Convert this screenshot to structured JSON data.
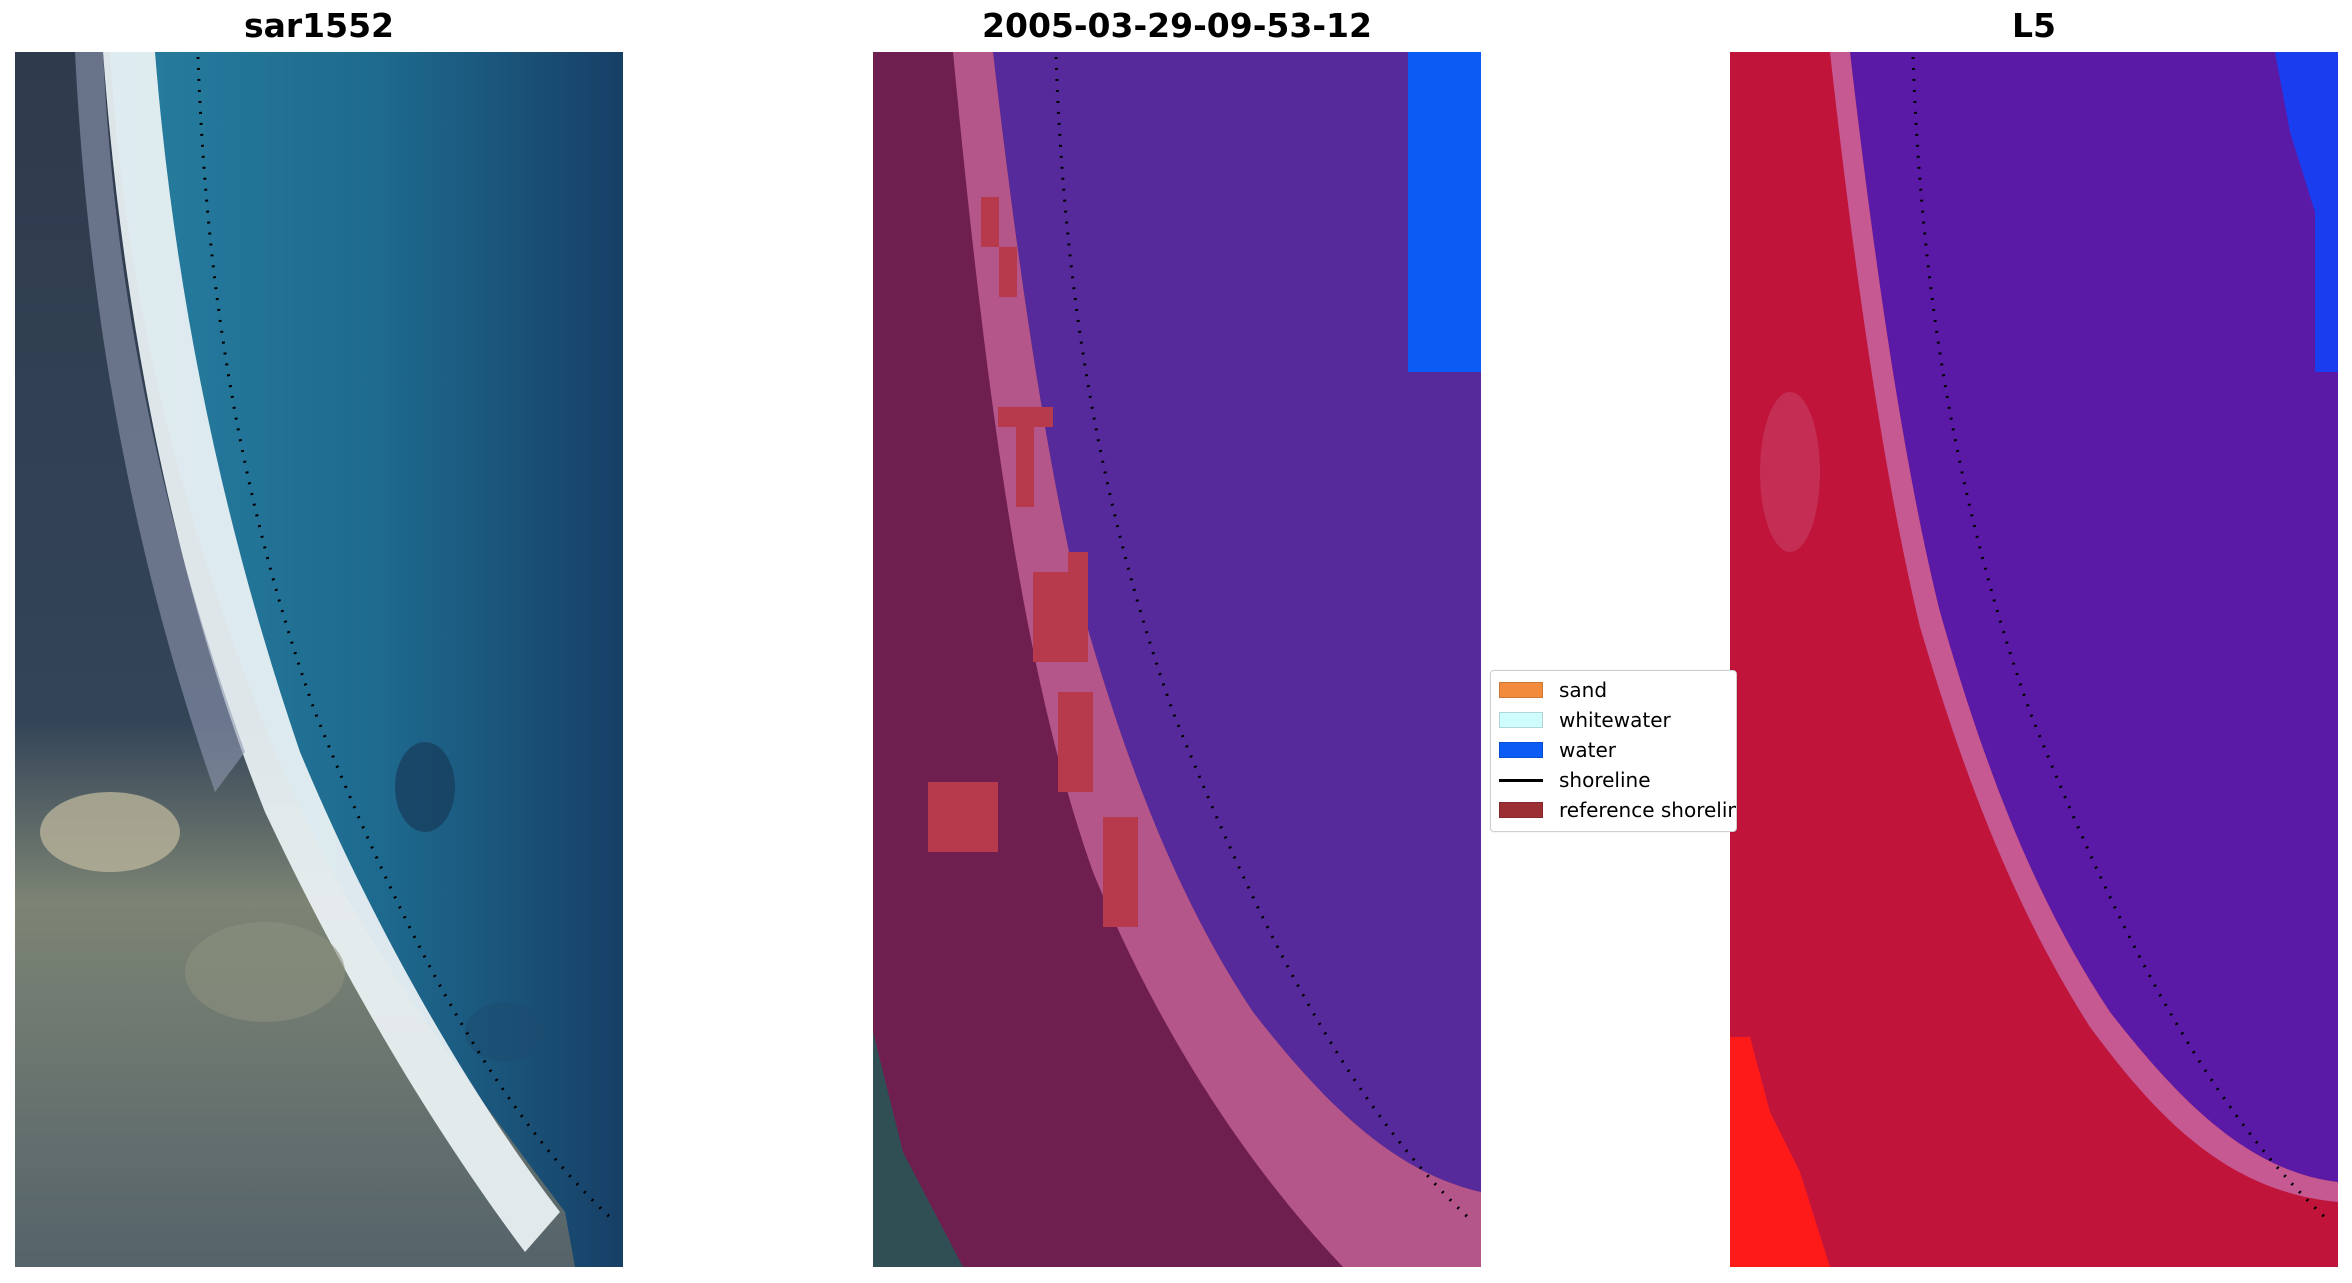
{
  "titles": {
    "left": "sar1552",
    "middle": "2005-03-29-09-53-12",
    "right": "L5"
  },
  "legend": {
    "items": [
      {
        "label": "sand",
        "color": "#f28b3c",
        "kind": "patch"
      },
      {
        "label": "whitewater",
        "color": "#cffcfd",
        "kind": "patch"
      },
      {
        "label": "water",
        "color": "#0b5cf5",
        "kind": "patch"
      },
      {
        "label": "shoreline",
        "color": "#000000",
        "kind": "line"
      },
      {
        "label": "reference shoreline",
        "color": "#9c2f33",
        "kind": "patch"
      }
    ]
  },
  "colors": {
    "rgb_water": "#1e6a8f",
    "rgb_land": "#3b4b5a",
    "rgb_beach": "#e8eef2",
    "class_water_overlay": "#562a9a",
    "class_land_overlay": "#6f1f4f",
    "class_sand_band": "#c26095",
    "class_ref_shoreline": "#b63a4c",
    "ndwi_land": "#c0143a",
    "ndwi_water": "#5a1aa6",
    "ndwi_bright_water": "#1a3df0",
    "ndwi_bright_land": "#ff1a1a"
  }
}
